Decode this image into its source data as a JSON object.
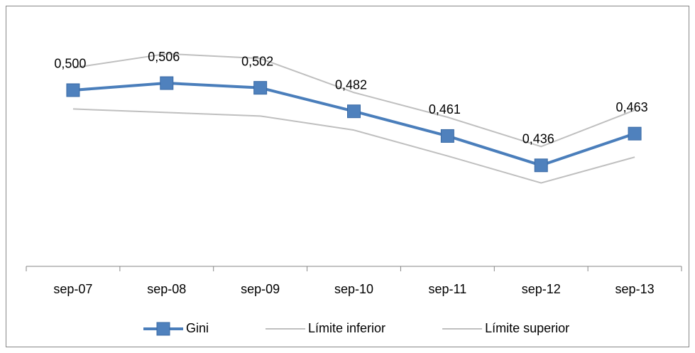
{
  "chart_data": {
    "type": "line",
    "categories": [
      "sep-07",
      "sep-08",
      "sep-09",
      "sep-10",
      "sep-11",
      "sep-12",
      "sep-13"
    ],
    "series": [
      {
        "name": "Gini",
        "color": "#4a7ebb",
        "values": [
          0.5,
          0.506,
          0.502,
          0.482,
          0.461,
          0.436,
          0.463
        ],
        "value_labels": [
          "0,500",
          "0,506",
          "0,502",
          "0,482",
          "0,461",
          "0,436",
          "0,463"
        ],
        "marker": true
      },
      {
        "name": "Límite inferior",
        "color": "#bfbfbf",
        "values": [
          0.484,
          0.481,
          0.478,
          0.466,
          0.444,
          0.421,
          0.443
        ]
      },
      {
        "name": "Límite superior",
        "color": "#bfbfbf",
        "values": [
          0.519,
          0.531,
          0.527,
          0.498,
          0.477,
          0.452,
          0.483
        ]
      }
    ],
    "ylim": [
      0.35,
      0.555
    ],
    "grid": false,
    "legend": "bottom"
  }
}
